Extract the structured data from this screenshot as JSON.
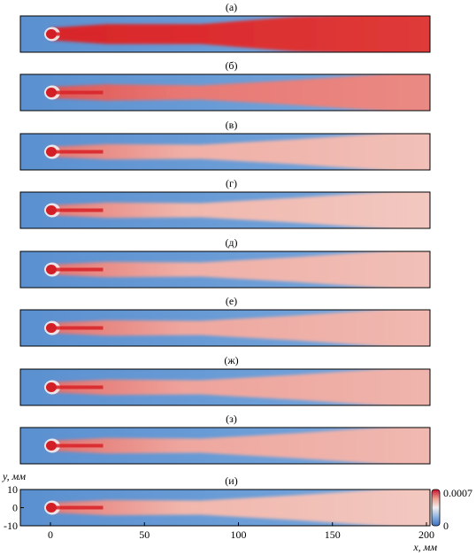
{
  "chart_data": {
    "type": "heatmap",
    "panels": [
      {
        "label": "(а)",
        "intensity": 1.0
      },
      {
        "label": "(б)",
        "intensity": 0.8
      },
      {
        "label": "(в)",
        "intensity": 0.66
      },
      {
        "label": "(г)",
        "intensity": 0.64
      },
      {
        "label": "(д)",
        "intensity": 0.66
      },
      {
        "label": "(е)",
        "intensity": 0.68
      },
      {
        "label": "(ж)",
        "intensity": 0.69
      },
      {
        "label": "(з)",
        "intensity": 0.68
      },
      {
        "label": "(и)",
        "intensity": 0.64
      }
    ],
    "xlabel": "x, мм",
    "ylabel": "y, мм",
    "x_ticks": [
      0,
      50,
      100,
      150,
      200
    ],
    "y_ticks": [
      10,
      0,
      -10
    ],
    "xlim": [
      -16,
      200
    ],
    "ylim": [
      -10,
      10
    ],
    "colorbar": {
      "min": 0,
      "max": 0.0007,
      "min_label": "0",
      "max_label": "0.0007"
    },
    "colors": {
      "low": "#5f93d0",
      "mid": "#f6e6e0",
      "high": "#d7282c",
      "frame": "#000000"
    }
  }
}
